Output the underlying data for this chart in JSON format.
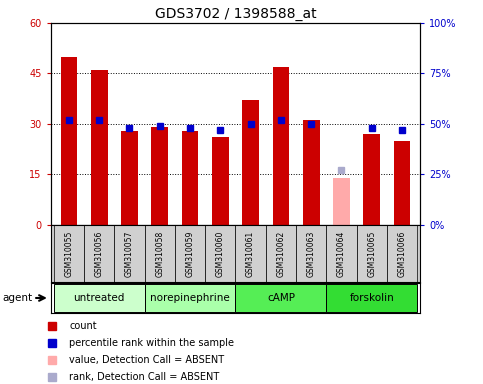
{
  "title": "GDS3702 / 1398588_at",
  "samples": [
    "GSM310055",
    "GSM310056",
    "GSM310057",
    "GSM310058",
    "GSM310059",
    "GSM310060",
    "GSM310061",
    "GSM310062",
    "GSM310063",
    "GSM310064",
    "GSM310065",
    "GSM310066"
  ],
  "count_values": [
    50,
    46,
    28,
    29,
    28,
    26,
    37,
    47,
    31,
    null,
    27,
    25
  ],
  "percentile_values": [
    52,
    52,
    48,
    49,
    48,
    47,
    50,
    52,
    50,
    null,
    48,
    47
  ],
  "absent_count_value": 14,
  "absent_rank_value": 27,
  "absent_index": 9,
  "groups": [
    {
      "label": "untreated",
      "indices": [
        0,
        1,
        2
      ],
      "color": "#ccffcc"
    },
    {
      "label": "norepinephrine",
      "indices": [
        3,
        4,
        5
      ],
      "color": "#aaffaa"
    },
    {
      "label": "cAMP",
      "indices": [
        6,
        7,
        8
      ],
      "color": "#55ee55"
    },
    {
      "label": "forskolin",
      "indices": [
        9,
        10,
        11
      ],
      "color": "#33dd33"
    }
  ],
  "ylim_left": [
    0,
    60
  ],
  "ylim_right": [
    0,
    100
  ],
  "yticks_left": [
    0,
    15,
    30,
    45,
    60
  ],
  "ytick_labels_left": [
    "0",
    "15",
    "30",
    "45",
    "60"
  ],
  "ytick_labels_right": [
    "0%",
    "25%",
    "50%",
    "75%",
    "100%"
  ],
  "count_color": "#cc0000",
  "percentile_color": "#0000cc",
  "absent_count_color": "#ffaaaa",
  "absent_rank_color": "#aaaacc",
  "legend_items": [
    {
      "label": "count",
      "color": "#cc0000"
    },
    {
      "label": "percentile rank within the sample",
      "color": "#0000cc"
    },
    {
      "label": "value, Detection Call = ABSENT",
      "color": "#ffaaaa"
    },
    {
      "label": "rank, Detection Call = ABSENT",
      "color": "#aaaacc"
    }
  ],
  "bar_width": 0.55,
  "sample_label_fontsize": 5.5,
  "group_label_fontsize": 7.5,
  "title_fontsize": 10,
  "legend_fontsize": 7,
  "axis_fontsize": 7
}
